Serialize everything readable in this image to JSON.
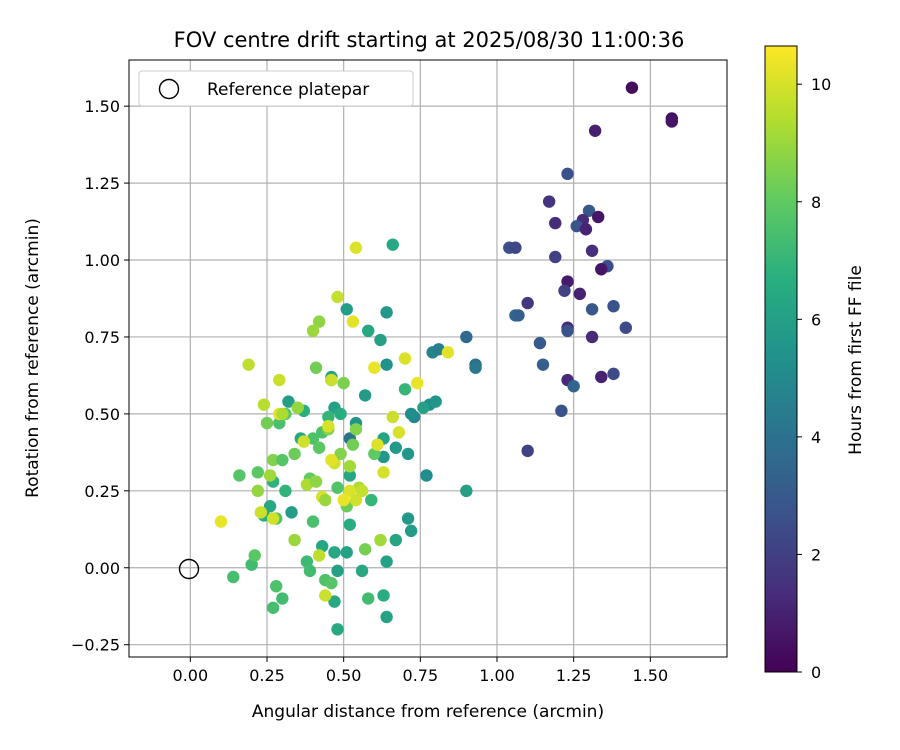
{
  "chart_data": {
    "type": "scatter",
    "title": "FOV centre drift starting at 2025/08/30 11:00:36",
    "xlabel": "Angular distance from reference (arcmin)",
    "ylabel": "Rotation from reference (arcmin)",
    "xlim": [
      -0.2,
      1.75
    ],
    "ylim": [
      -0.29,
      1.65
    ],
    "xticks": [
      0.0,
      0.25,
      0.5,
      0.75,
      1.0,
      1.25,
      1.5
    ],
    "xtick_labels": [
      "0.00",
      "0.25",
      "0.50",
      "0.75",
      "1.00",
      "1.25",
      "1.50"
    ],
    "yticks": [
      -0.25,
      0.0,
      0.25,
      0.5,
      0.75,
      1.0,
      1.25,
      1.5
    ],
    "ytick_labels": [
      "−0.25",
      "0.00",
      "0.25",
      "0.50",
      "0.75",
      "1.00",
      "1.25",
      "1.50"
    ],
    "grid": true,
    "legend": {
      "placement": "top-left",
      "entries": [
        "Reference platepar"
      ]
    },
    "reference": {
      "x": 0.0,
      "y": 0.0
    },
    "colorbar": {
      "label": "Hours from first FF file",
      "min": 0,
      "max": 10.65,
      "ticks": [
        0,
        2,
        4,
        6,
        8,
        10
      ],
      "tick_labels": [
        "0",
        "2",
        "4",
        "6",
        "8",
        "10"
      ],
      "colormap": "viridis"
    },
    "points": [
      {
        "x": 1.44,
        "y": 1.56,
        "h": 0.3
      },
      {
        "x": 1.57,
        "y": 1.46,
        "h": 0.4
      },
      {
        "x": 1.57,
        "y": 1.45,
        "h": 0.6
      },
      {
        "x": 1.32,
        "y": 1.42,
        "h": 0.9
      },
      {
        "x": 1.23,
        "y": 1.28,
        "h": 2.6
      },
      {
        "x": 1.3,
        "y": 1.16,
        "h": 2.9
      },
      {
        "x": 1.17,
        "y": 1.19,
        "h": 1.6
      },
      {
        "x": 1.33,
        "y": 1.14,
        "h": 0.6
      },
      {
        "x": 1.28,
        "y": 1.13,
        "h": 1.3
      },
      {
        "x": 1.26,
        "y": 1.11,
        "h": 2.8
      },
      {
        "x": 1.29,
        "y": 1.1,
        "h": 1.1
      },
      {
        "x": 1.19,
        "y": 1.12,
        "h": 1.3
      },
      {
        "x": 1.04,
        "y": 1.04,
        "h": 2.6
      },
      {
        "x": 1.06,
        "y": 1.04,
        "h": 2.3
      },
      {
        "x": 1.31,
        "y": 1.03,
        "h": 1.4
      },
      {
        "x": 1.19,
        "y": 1.01,
        "h": 2.0
      },
      {
        "x": 1.36,
        "y": 0.98,
        "h": 2.5
      },
      {
        "x": 1.34,
        "y": 0.97,
        "h": 0.6
      },
      {
        "x": 1.23,
        "y": 0.93,
        "h": 0.8
      },
      {
        "x": 1.22,
        "y": 0.9,
        "h": 2.1
      },
      {
        "x": 1.27,
        "y": 0.89,
        "h": 1.0
      },
      {
        "x": 1.38,
        "y": 0.85,
        "h": 2.7
      },
      {
        "x": 1.1,
        "y": 0.86,
        "h": 1.7
      },
      {
        "x": 1.31,
        "y": 0.84,
        "h": 2.9
      },
      {
        "x": 1.06,
        "y": 0.82,
        "h": 3.6
      },
      {
        "x": 1.07,
        "y": 0.82,
        "h": 3.2
      },
      {
        "x": 1.42,
        "y": 0.78,
        "h": 2.4
      },
      {
        "x": 1.23,
        "y": 0.78,
        "h": 1.2
      },
      {
        "x": 1.23,
        "y": 0.77,
        "h": 2.7
      },
      {
        "x": 1.14,
        "y": 0.73,
        "h": 3.0
      },
      {
        "x": 1.31,
        "y": 0.75,
        "h": 1.3
      },
      {
        "x": 1.15,
        "y": 0.66,
        "h": 3.2
      },
      {
        "x": 1.38,
        "y": 0.63,
        "h": 2.4
      },
      {
        "x": 1.34,
        "y": 0.62,
        "h": 1.0
      },
      {
        "x": 1.23,
        "y": 0.61,
        "h": 1.2
      },
      {
        "x": 1.25,
        "y": 0.59,
        "h": 3.4
      },
      {
        "x": 1.21,
        "y": 0.51,
        "h": 2.7
      },
      {
        "x": 1.1,
        "y": 0.38,
        "h": 2.1
      },
      {
        "x": 0.9,
        "y": 0.75,
        "h": 3.6
      },
      {
        "x": 0.93,
        "y": 0.66,
        "h": 3.8
      },
      {
        "x": 0.93,
        "y": 0.65,
        "h": 4.2
      },
      {
        "x": 0.79,
        "y": 0.7,
        "h": 4.8
      },
      {
        "x": 0.81,
        "y": 0.71,
        "h": 4.5
      },
      {
        "x": 0.78,
        "y": 0.53,
        "h": 5.3
      },
      {
        "x": 0.8,
        "y": 0.54,
        "h": 5.5
      },
      {
        "x": 0.73,
        "y": 0.49,
        "h": 4.9
      },
      {
        "x": 0.72,
        "y": 0.5,
        "h": 5.2
      },
      {
        "x": 0.77,
        "y": 0.3,
        "h": 5.1
      },
      {
        "x": 0.9,
        "y": 0.25,
        "h": 6.0
      },
      {
        "x": 0.71,
        "y": 0.16,
        "h": 5.6
      },
      {
        "x": 0.72,
        "y": 0.12,
        "h": 5.8
      },
      {
        "x": 0.67,
        "y": 0.09,
        "h": 6.2
      },
      {
        "x": 0.67,
        "y": 0.39,
        "h": 5.7
      },
      {
        "x": 0.7,
        "y": 0.58,
        "h": 7.0
      },
      {
        "x": 0.66,
        "y": 1.05,
        "h": 6.4
      },
      {
        "x": 0.62,
        "y": 0.74,
        "h": 6.0
      },
      {
        "x": 0.58,
        "y": 0.77,
        "h": 6.4
      },
      {
        "x": 0.64,
        "y": 0.83,
        "h": 5.6
      },
      {
        "x": 0.51,
        "y": 0.84,
        "h": 5.9
      },
      {
        "x": 0.52,
        "y": 0.42,
        "h": 4.1
      },
      {
        "x": 0.54,
        "y": 0.47,
        "h": 5.5
      },
      {
        "x": 0.57,
        "y": 0.56,
        "h": 5.8
      },
      {
        "x": 0.64,
        "y": 0.66,
        "h": 5.4
      },
      {
        "x": 0.63,
        "y": 0.42,
        "h": 6.2
      },
      {
        "x": 0.63,
        "y": 0.36,
        "h": 5.6
      },
      {
        "x": 0.71,
        "y": 0.37,
        "h": 5.6
      },
      {
        "x": 0.59,
        "y": 0.22,
        "h": 7.0
      },
      {
        "x": 0.52,
        "y": 0.3,
        "h": 6.3
      },
      {
        "x": 0.51,
        "y": 0.05,
        "h": 6.1
      },
      {
        "x": 0.52,
        "y": 0.14,
        "h": 6.6
      },
      {
        "x": 0.47,
        "y": 0.05,
        "h": 6.4
      },
      {
        "x": 0.43,
        "y": 0.07,
        "h": 6.3
      },
      {
        "x": 0.46,
        "y": 0.61,
        "h": 5.6
      },
      {
        "x": 0.46,
        "y": 0.62,
        "h": 6.2
      },
      {
        "x": 0.47,
        "y": 0.52,
        "h": 6.0
      },
      {
        "x": 0.49,
        "y": 0.5,
        "h": 6.6
      },
      {
        "x": 0.45,
        "y": 0.49,
        "h": 7.0
      },
      {
        "x": 0.37,
        "y": 0.51,
        "h": 6.7
      },
      {
        "x": 0.36,
        "y": 0.42,
        "h": 6.4
      },
      {
        "x": 0.43,
        "y": 0.44,
        "h": 7.5
      },
      {
        "x": 0.32,
        "y": 0.54,
        "h": 5.9
      },
      {
        "x": 0.31,
        "y": 0.25,
        "h": 6.9
      },
      {
        "x": 0.33,
        "y": 0.18,
        "h": 5.9
      },
      {
        "x": 0.27,
        "y": 0.28,
        "h": 6.8
      },
      {
        "x": 0.26,
        "y": 0.2,
        "h": 6.4
      },
      {
        "x": 0.28,
        "y": 0.16,
        "h": 7.6
      },
      {
        "x": 0.24,
        "y": 0.17,
        "h": 6.6
      },
      {
        "x": 0.4,
        "y": 0.15,
        "h": 7.5
      },
      {
        "x": 0.38,
        "y": 0.02,
        "h": 7.2
      },
      {
        "x": 0.39,
        "y": -0.01,
        "h": 7.3
      },
      {
        "x": 0.44,
        "y": -0.04,
        "h": 7.6
      },
      {
        "x": 0.46,
        "y": -0.05,
        "h": 7.8
      },
      {
        "x": 0.47,
        "y": -0.11,
        "h": 6.4
      },
      {
        "x": 0.48,
        "y": -0.01,
        "h": 6.0
      },
      {
        "x": 0.48,
        "y": -0.2,
        "h": 6.4
      },
      {
        "x": 0.56,
        "y": -0.01,
        "h": 6.4
      },
      {
        "x": 0.58,
        "y": -0.1,
        "h": 7.3
      },
      {
        "x": 0.63,
        "y": -0.09,
        "h": 6.6
      },
      {
        "x": 0.64,
        "y": -0.16,
        "h": 6.1
      },
      {
        "x": 0.64,
        "y": 0.02,
        "h": 6.1
      },
      {
        "x": 0.27,
        "y": -0.13,
        "h": 7.4
      },
      {
        "x": 0.3,
        "y": -0.1,
        "h": 7.3
      },
      {
        "x": 0.28,
        "y": -0.06,
        "h": 7.6
      },
      {
        "x": 0.2,
        "y": 0.01,
        "h": 7.3
      },
      {
        "x": 0.21,
        "y": 0.04,
        "h": 7.9
      },
      {
        "x": 0.14,
        "y": -0.03,
        "h": 7.4
      },
      {
        "x": 0.16,
        "y": 0.3,
        "h": 7.8
      },
      {
        "x": 0.22,
        "y": 0.31,
        "h": 7.9
      },
      {
        "x": 0.25,
        "y": 0.47,
        "h": 8.3
      },
      {
        "x": 0.27,
        "y": 0.35,
        "h": 8.6
      },
      {
        "x": 0.3,
        "y": 0.35,
        "h": 7.8
      },
      {
        "x": 0.34,
        "y": 0.37,
        "h": 8.2
      },
      {
        "x": 0.29,
        "y": 0.47,
        "h": 7.5
      },
      {
        "x": 0.31,
        "y": 0.5,
        "h": 7.8
      },
      {
        "x": 0.35,
        "y": 0.52,
        "h": 8.9
      },
      {
        "x": 0.39,
        "y": 0.29,
        "h": 8.1
      },
      {
        "x": 0.41,
        "y": 0.65,
        "h": 8.3
      },
      {
        "x": 0.42,
        "y": 0.8,
        "h": 8.8
      },
      {
        "x": 0.4,
        "y": 0.77,
        "h": 9.0
      },
      {
        "x": 0.4,
        "y": 0.42,
        "h": 7.6
      },
      {
        "x": 0.42,
        "y": 0.39,
        "h": 7.9
      },
      {
        "x": 0.45,
        "y": 0.45,
        "h": 8.6
      },
      {
        "x": 0.47,
        "y": 0.34,
        "h": 9.9
      },
      {
        "x": 0.48,
        "y": 0.26,
        "h": 7.7
      },
      {
        "x": 0.49,
        "y": 0.37,
        "h": 8.6
      },
      {
        "x": 0.5,
        "y": 0.6,
        "h": 8.5
      },
      {
        "x": 0.51,
        "y": 0.2,
        "h": 8.2
      },
      {
        "x": 0.52,
        "y": 0.33,
        "h": 9.1
      },
      {
        "x": 0.53,
        "y": 0.4,
        "h": 8.3
      },
      {
        "x": 0.54,
        "y": 0.45,
        "h": 8.6
      },
      {
        "x": 0.55,
        "y": 0.26,
        "h": 9.3
      },
      {
        "x": 0.57,
        "y": 0.06,
        "h": 8.4
      },
      {
        "x": 0.6,
        "y": 0.37,
        "h": 8.0
      },
      {
        "x": 0.61,
        "y": 0.4,
        "h": 10.1
      },
      {
        "x": 0.62,
        "y": 0.09,
        "h": 9.1
      },
      {
        "x": 0.63,
        "y": 0.31,
        "h": 10.0
      },
      {
        "x": 0.68,
        "y": 0.44,
        "h": 10.0
      },
      {
        "x": 0.7,
        "y": 0.68,
        "h": 10.1
      },
      {
        "x": 0.66,
        "y": 0.49,
        "h": 9.8
      },
      {
        "x": 0.6,
        "y": 0.65,
        "h": 10.3
      },
      {
        "x": 0.53,
        "y": 0.8,
        "h": 10.2
      },
      {
        "x": 0.48,
        "y": 0.88,
        "h": 9.7
      },
      {
        "x": 0.54,
        "y": 1.04,
        "h": 10.1
      },
      {
        "x": 0.46,
        "y": 0.61,
        "h": 9.8
      },
      {
        "x": 0.45,
        "y": 0.46,
        "h": 10.0
      },
      {
        "x": 0.46,
        "y": 0.35,
        "h": 10.2
      },
      {
        "x": 0.43,
        "y": 0.23,
        "h": 10.0
      },
      {
        "x": 0.44,
        "y": 0.22,
        "h": 9.0
      },
      {
        "x": 0.37,
        "y": 0.41,
        "h": 9.9
      },
      {
        "x": 0.38,
        "y": 0.27,
        "h": 9.3
      },
      {
        "x": 0.41,
        "y": 0.28,
        "h": 8.8
      },
      {
        "x": 0.42,
        "y": 0.04,
        "h": 9.6
      },
      {
        "x": 0.44,
        "y": -0.09,
        "h": 9.8
      },
      {
        "x": 0.34,
        "y": 0.09,
        "h": 9.0
      },
      {
        "x": 0.29,
        "y": 0.61,
        "h": 9.8
      },
      {
        "x": 0.29,
        "y": 0.5,
        "h": 10.2
      },
      {
        "x": 0.3,
        "y": 0.5,
        "h": 9.3
      },
      {
        "x": 0.26,
        "y": 0.3,
        "h": 9.1
      },
      {
        "x": 0.23,
        "y": 0.18,
        "h": 9.8
      },
      {
        "x": 0.24,
        "y": 0.53,
        "h": 9.5
      },
      {
        "x": 0.19,
        "y": 0.66,
        "h": 9.6
      },
      {
        "x": 0.1,
        "y": 0.15,
        "h": 10.3
      },
      {
        "x": 0.22,
        "y": 0.25,
        "h": 8.9
      },
      {
        "x": 0.27,
        "y": 0.16,
        "h": 9.9
      },
      {
        "x": 0.52,
        "y": 0.25,
        "h": 10.1
      },
      {
        "x": 0.54,
        "y": 0.22,
        "h": 9.9
      },
      {
        "x": 0.5,
        "y": 0.22,
        "h": 10.3
      },
      {
        "x": 0.56,
        "y": 0.25,
        "h": 9.7
      },
      {
        "x": 0.74,
        "y": 0.6,
        "h": 10.3
      },
      {
        "x": 0.84,
        "y": 0.7,
        "h": 10.2
      },
      {
        "x": 0.76,
        "y": 0.52,
        "h": 6.0
      }
    ]
  }
}
